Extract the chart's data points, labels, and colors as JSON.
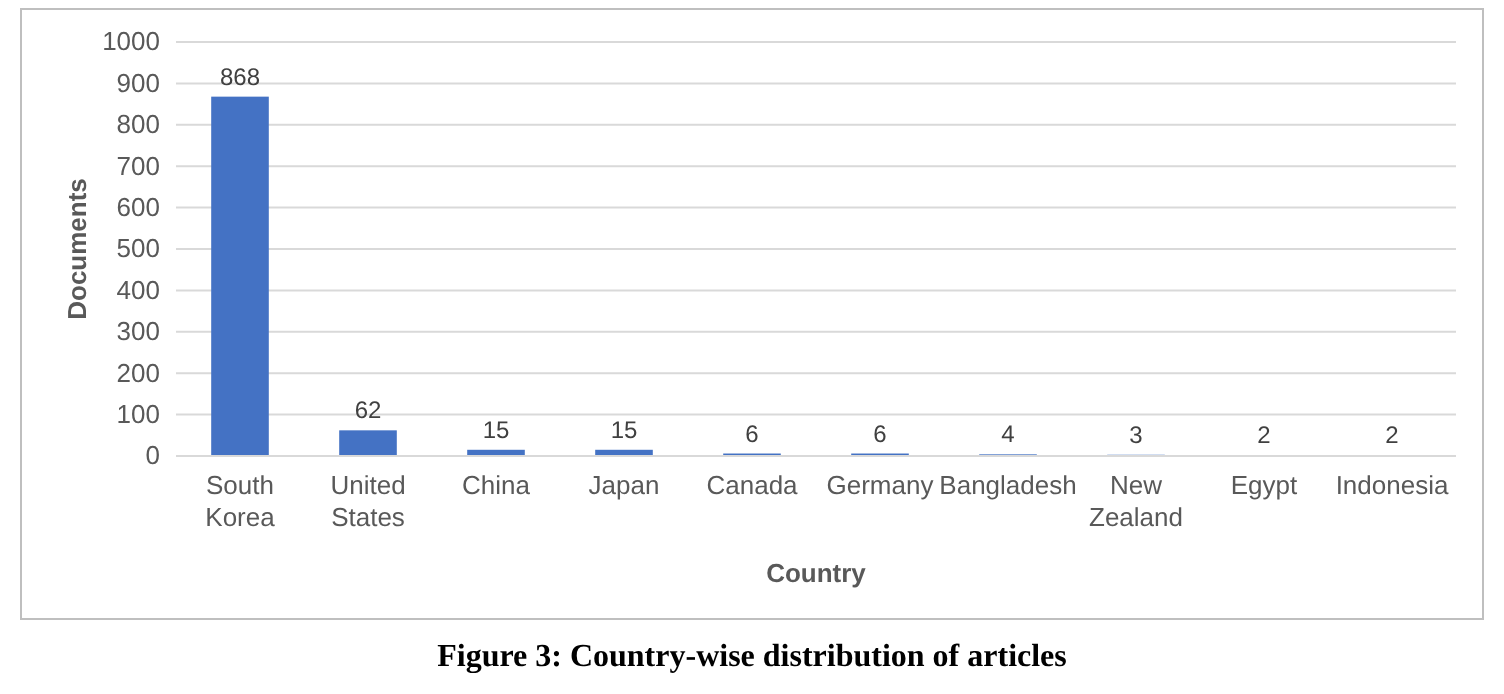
{
  "chart_data": {
    "type": "bar",
    "title": "Figure 3: Country-wise distribution of articles",
    "xlabel": "Country",
    "ylabel": "Documents",
    "categories": [
      "South Korea",
      "United States",
      "China",
      "Japan",
      "Canada",
      "Germany",
      "Bangladesh",
      "New Zealand",
      "Egypt",
      "Indonesia"
    ],
    "values": [
      868,
      62,
      15,
      15,
      6,
      6,
      4,
      3,
      2,
      2
    ],
    "color": "#4472c4",
    "ylim": [
      0,
      1000
    ],
    "yticks": [
      0,
      100,
      200,
      300,
      400,
      500,
      600,
      700,
      800,
      900,
      1000
    ],
    "grid": "y",
    "data_labels": true
  }
}
